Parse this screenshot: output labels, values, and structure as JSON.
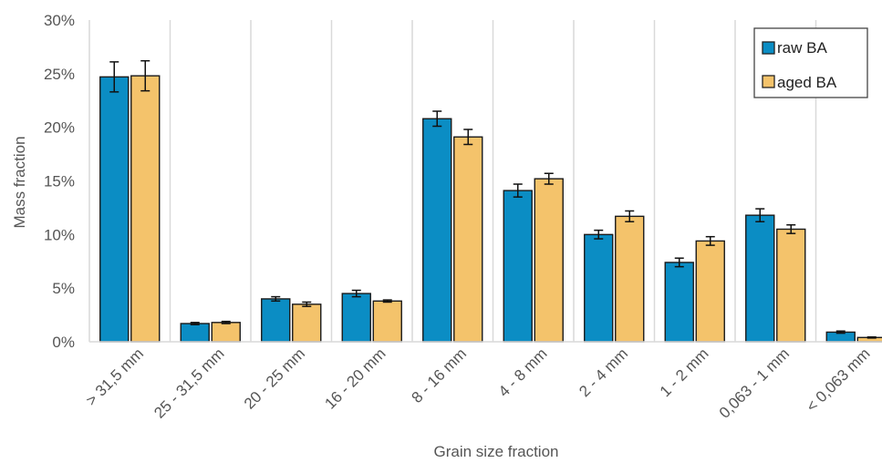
{
  "chart_data": {
    "type": "bar",
    "title": "",
    "xlabel": "Grain size fraction",
    "ylabel": "Mass fraction",
    "ylim": [
      0,
      0.3
    ],
    "yticks": [
      0,
      0.05,
      0.1,
      0.15,
      0.2,
      0.25,
      0.3
    ],
    "ytick_labels": [
      "0%",
      "5%",
      "10%",
      "15%",
      "20%",
      "25%",
      "30%"
    ],
    "grid": "vertical",
    "legend_position": "top-right",
    "categories": [
      "> 31,5 mm",
      "25 - 31,5 mm",
      "20 - 25 mm",
      "16 - 20 mm",
      "8 - 16 mm",
      "4 - 8 mm",
      "2 - 4 mm",
      "1 - 2 mm",
      "0,063 - 1 mm",
      "< 0,063 mm"
    ],
    "series": [
      {
        "name": "raw BA",
        "color": "#0b8dc4",
        "values": [
          0.247,
          0.017,
          0.04,
          0.045,
          0.208,
          0.141,
          0.1,
          0.074,
          0.118,
          0.009
        ],
        "errors": [
          0.014,
          0.001,
          0.002,
          0.003,
          0.007,
          0.006,
          0.004,
          0.004,
          0.006,
          0.001
        ]
      },
      {
        "name": "aged BA",
        "color": "#f4c36b",
        "values": [
          0.248,
          0.018,
          0.035,
          0.038,
          0.191,
          0.152,
          0.117,
          0.094,
          0.105,
          0.004
        ],
        "errors": [
          0.014,
          0.001,
          0.002,
          0.001,
          0.007,
          0.005,
          0.005,
          0.004,
          0.004,
          0.0005
        ]
      }
    ]
  }
}
